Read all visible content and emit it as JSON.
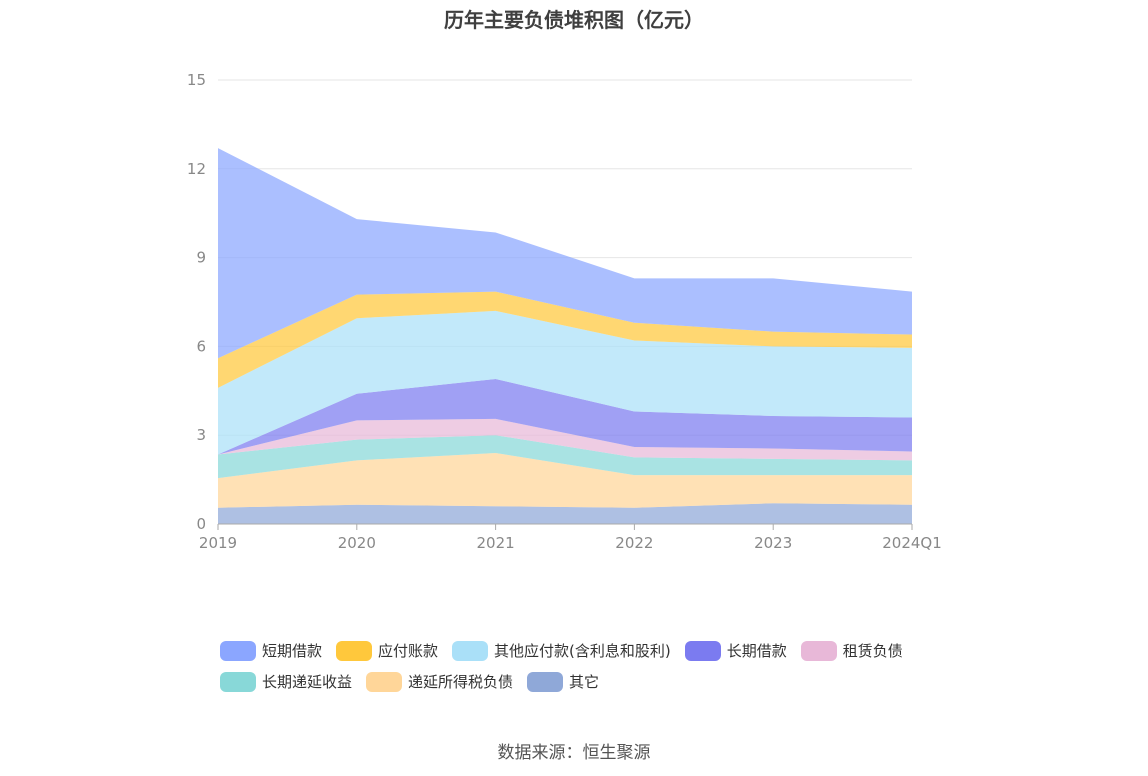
{
  "chart_data": {
    "type": "area",
    "stacked": true,
    "title": "历年主要负债堆积图（亿元）",
    "categories": [
      "2019",
      "2020",
      "2021",
      "2022",
      "2023",
      "2024Q1"
    ],
    "y_ticks": [
      "0",
      "3",
      "6",
      "9",
      "12",
      "15"
    ],
    "ylim": [
      0,
      15
    ],
    "grid": true,
    "legend_position": "bottom",
    "series": [
      {
        "name": "其它",
        "color": "#8fa8d8",
        "values": [
          0.55,
          0.65,
          0.6,
          0.55,
          0.7,
          0.65
        ]
      },
      {
        "name": "递延所得税负债",
        "color": "#ffd699",
        "values": [
          1.0,
          1.5,
          1.8,
          1.1,
          0.95,
          1.0
        ]
      },
      {
        "name": "长期递延收益",
        "color": "#88d8d8",
        "values": [
          0.8,
          0.7,
          0.6,
          0.6,
          0.55,
          0.5
        ]
      },
      {
        "name": "租赁负债",
        "color": "#e8b8d8",
        "values": [
          0.0,
          0.65,
          0.55,
          0.35,
          0.35,
          0.3
        ]
      },
      {
        "name": "长期借款",
        "color": "#7b7bf0",
        "values": [
          0.0,
          0.9,
          1.35,
          1.2,
          1.1,
          1.15
        ]
      },
      {
        "name": "其他应付款(含利息和股利)",
        "color": "#aae0f8",
        "values": [
          2.25,
          2.55,
          2.3,
          2.4,
          2.35,
          2.35
        ]
      },
      {
        "name": "应付账款",
        "color": "#ffc83c",
        "values": [
          1.0,
          0.8,
          0.65,
          0.6,
          0.5,
          0.45
        ]
      },
      {
        "name": "短期借款",
        "color": "#8ba6ff",
        "values": [
          7.1,
          2.55,
          2.0,
          1.5,
          1.8,
          1.45
        ]
      }
    ]
  },
  "legend": {
    "row1": [
      "短期借款",
      "应付账款",
      "其他应付款(含利息和股利)",
      "长期借款",
      "租赁负债"
    ],
    "row2": [
      "长期递延收益",
      "递延所得税负债",
      "其它"
    ],
    "colors": {
      "短期借款": "#8ba6ff",
      "应付账款": "#ffc83c",
      "其他应付款(含利息和股利)": "#aae0f8",
      "长期借款": "#7b7bf0",
      "租赁负债": "#e8b8d8",
      "长期递延收益": "#88d8d8",
      "递延所得税负债": "#ffd699",
      "其它": "#8fa8d8"
    }
  },
  "source": "数据来源：恒生聚源"
}
